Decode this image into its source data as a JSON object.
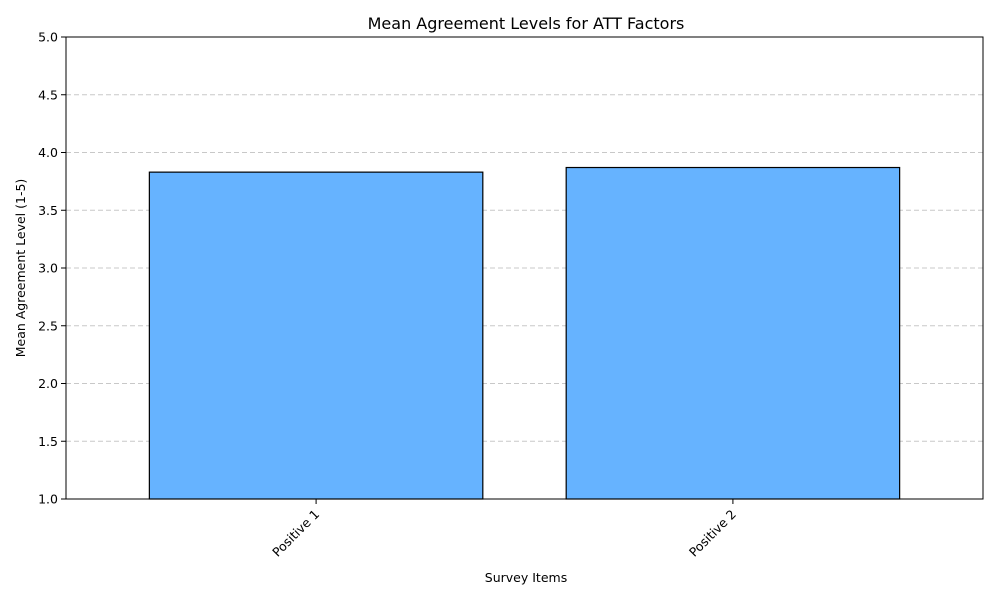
{
  "chart_data": {
    "type": "bar",
    "title": "Mean Agreement Levels for ATT Factors",
    "xlabel": "Survey Items",
    "ylabel": "Mean Agreement Level (1-5)",
    "categories": [
      "Positive 1",
      "Positive 2"
    ],
    "values": [
      3.83,
      3.87
    ],
    "ylim": [
      1.0,
      5.0
    ],
    "yticks": [
      "1.0",
      "1.5",
      "2.0",
      "2.5",
      "3.0",
      "3.5",
      "4.0",
      "4.5",
      "5.0"
    ],
    "grid": "y-dashed",
    "bar_color": "#66b3ff",
    "bar_edge_color": "#000000"
  }
}
